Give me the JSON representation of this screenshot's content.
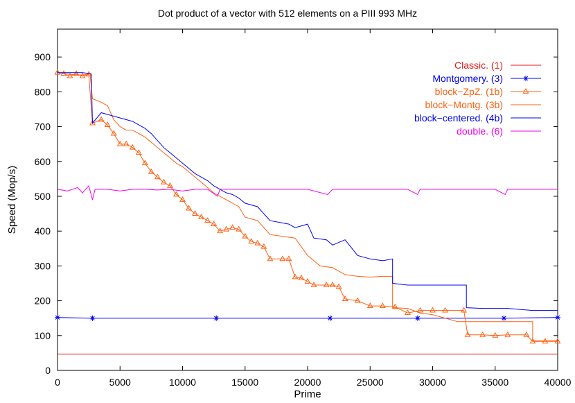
{
  "chart_data": {
    "type": "line",
    "title": "Dot product of a vector with 512 elements on a PIII 993 MHz",
    "xlabel": "Prime",
    "ylabel": "Speed (Mop/s)",
    "xlim": [
      0,
      40000
    ],
    "ylim": [
      0,
      980
    ],
    "x_ticks": [
      0,
      5000,
      10000,
      15000,
      20000,
      25000,
      30000,
      35000,
      40000
    ],
    "y_ticks": [
      0,
      100,
      200,
      300,
      400,
      500,
      600,
      700,
      800,
      900
    ],
    "x_tick_labels": [
      "0",
      "5000",
      "10000",
      "15000",
      "20000",
      "25000",
      "30000",
      "35000",
      "40000"
    ],
    "y_tick_labels": [
      "0",
      "100",
      "200",
      "300",
      "400",
      "500",
      "600",
      "700",
      "800",
      "900"
    ],
    "legend_position": "top-right",
    "series": [
      {
        "name": "Classic. (1)",
        "color": "#e41a1c",
        "marker": "none",
        "points": [
          [
            0,
            47
          ],
          [
            40000,
            47
          ]
        ]
      },
      {
        "name": "Montgomery. (3)",
        "color": "#0000ee",
        "marker": "star",
        "points": [
          [
            0,
            152
          ],
          [
            2800,
            150
          ],
          [
            12700,
            150
          ],
          [
            21800,
            150
          ],
          [
            28800,
            150
          ],
          [
            35700,
            150
          ],
          [
            40000,
            152
          ]
        ]
      },
      {
        "name": "block−ZpZ. (1b)",
        "color": "#ff6010",
        "marker": "triangle",
        "points": [
          [
            0,
            855
          ],
          [
            500,
            852
          ],
          [
            1000,
            845
          ],
          [
            1500,
            852
          ],
          [
            2000,
            845
          ],
          [
            2500,
            850
          ],
          [
            2800,
            710
          ],
          [
            3500,
            720
          ],
          [
            4000,
            705
          ],
          [
            4500,
            680
          ],
          [
            5000,
            650
          ],
          [
            5500,
            650
          ],
          [
            6000,
            640
          ],
          [
            6500,
            625
          ],
          [
            7000,
            595
          ],
          [
            7500,
            570
          ],
          [
            8000,
            555
          ],
          [
            8500,
            540
          ],
          [
            9000,
            530
          ],
          [
            9500,
            505
          ],
          [
            10000,
            490
          ],
          [
            10500,
            465
          ],
          [
            11000,
            450
          ],
          [
            11500,
            440
          ],
          [
            12000,
            430
          ],
          [
            12500,
            420
          ],
          [
            13000,
            400
          ],
          [
            13500,
            405
          ],
          [
            14000,
            410
          ],
          [
            14500,
            405
          ],
          [
            15000,
            385
          ],
          [
            15500,
            370
          ],
          [
            16000,
            365
          ],
          [
            16500,
            355
          ],
          [
            17000,
            320
          ],
          [
            18000,
            320
          ],
          [
            18500,
            320
          ],
          [
            19000,
            268
          ],
          [
            19500,
            265
          ],
          [
            20000,
            255
          ],
          [
            20500,
            245
          ],
          [
            21500,
            245
          ],
          [
            22000,
            245
          ],
          [
            22500,
            240
          ],
          [
            23000,
            205
          ],
          [
            24000,
            200
          ],
          [
            25000,
            185
          ],
          [
            26000,
            185
          ],
          [
            27000,
            182
          ],
          [
            28000,
            165
          ],
          [
            29000,
            172
          ],
          [
            30000,
            172
          ],
          [
            31000,
            172
          ],
          [
            32500,
            172
          ],
          [
            32800,
            102
          ],
          [
            34000,
            102
          ],
          [
            35000,
            100
          ],
          [
            36000,
            102
          ],
          [
            37500,
            102
          ],
          [
            38000,
            83
          ],
          [
            39000,
            83
          ],
          [
            40000,
            83
          ]
        ]
      },
      {
        "name": "block−Montg. (3b)",
        "color": "#ff6010",
        "marker": "none",
        "points": [
          [
            0,
            855
          ],
          [
            1000,
            850
          ],
          [
            2000,
            848
          ],
          [
            2600,
            852
          ],
          [
            2800,
            780
          ],
          [
            3500,
            770
          ],
          [
            4000,
            760
          ],
          [
            4500,
            720
          ],
          [
            5000,
            700
          ],
          [
            5500,
            690
          ],
          [
            6000,
            690
          ],
          [
            6500,
            680
          ],
          [
            7000,
            670
          ],
          [
            7500,
            655
          ],
          [
            8000,
            640
          ],
          [
            8500,
            625
          ],
          [
            9000,
            610
          ],
          [
            9500,
            595
          ],
          [
            10000,
            585
          ],
          [
            10500,
            570
          ],
          [
            11000,
            555
          ],
          [
            11500,
            540
          ],
          [
            12000,
            525
          ],
          [
            12500,
            510
          ],
          [
            13000,
            500
          ],
          [
            13500,
            490
          ],
          [
            14000,
            480
          ],
          [
            14500,
            470
          ],
          [
            15000,
            440
          ],
          [
            15500,
            435
          ],
          [
            16000,
            430
          ],
          [
            17000,
            390
          ],
          [
            18000,
            385
          ],
          [
            19000,
            380
          ],
          [
            20000,
            330
          ],
          [
            21000,
            300
          ],
          [
            22000,
            295
          ],
          [
            23000,
            275
          ],
          [
            24000,
            270
          ],
          [
            25000,
            268
          ],
          [
            26000,
            270
          ],
          [
            26800,
            270
          ],
          [
            26800,
            180
          ],
          [
            28000,
            178
          ],
          [
            29000,
            165
          ],
          [
            30000,
            160
          ],
          [
            31000,
            150
          ],
          [
            32000,
            140
          ],
          [
            33000,
            140
          ],
          [
            34000,
            140
          ],
          [
            35000,
            140
          ],
          [
            36000,
            140
          ],
          [
            37000,
            140
          ],
          [
            38000,
            140
          ],
          [
            38000,
            85
          ],
          [
            40000,
            85
          ]
        ]
      },
      {
        "name": "block−centered. (4b)",
        "color": "#0000ee",
        "marker": "none",
        "points": [
          [
            0,
            855
          ],
          [
            1000,
            855
          ],
          [
            2000,
            855
          ],
          [
            2700,
            852
          ],
          [
            2800,
            710
          ],
          [
            3500,
            740
          ],
          [
            4000,
            735
          ],
          [
            5000,
            725
          ],
          [
            6000,
            715
          ],
          [
            7000,
            695
          ],
          [
            7500,
            680
          ],
          [
            8000,
            660
          ],
          [
            8500,
            640
          ],
          [
            9000,
            625
          ],
          [
            9500,
            610
          ],
          [
            10000,
            595
          ],
          [
            10500,
            580
          ],
          [
            11000,
            565
          ],
          [
            11500,
            555
          ],
          [
            12000,
            545
          ],
          [
            12500,
            530
          ],
          [
            13000,
            520
          ],
          [
            13500,
            510
          ],
          [
            14000,
            505
          ],
          [
            14500,
            495
          ],
          [
            15000,
            480
          ],
          [
            16000,
            470
          ],
          [
            16500,
            450
          ],
          [
            17000,
            430
          ],
          [
            18500,
            420
          ],
          [
            19000,
            410
          ],
          [
            20000,
            420
          ],
          [
            20500,
            380
          ],
          [
            21500,
            375
          ],
          [
            22000,
            360
          ],
          [
            23000,
            375
          ],
          [
            24000,
            330
          ],
          [
            25000,
            320
          ],
          [
            26000,
            315
          ],
          [
            26800,
            320
          ],
          [
            26800,
            250
          ],
          [
            28000,
            245
          ],
          [
            30000,
            245
          ],
          [
            31500,
            245
          ],
          [
            32700,
            245
          ],
          [
            32700,
            180
          ],
          [
            34000,
            178
          ],
          [
            36000,
            178
          ],
          [
            38000,
            172
          ],
          [
            40000,
            172
          ]
        ]
      },
      {
        "name": "double. (6)",
        "color": "#ee00ee",
        "marker": "none",
        "points": [
          [
            0,
            520
          ],
          [
            800,
            515
          ],
          [
            1600,
            525
          ],
          [
            2000,
            510
          ],
          [
            2500,
            530
          ],
          [
            2800,
            490
          ],
          [
            3000,
            520
          ],
          [
            4000,
            520
          ],
          [
            5000,
            515
          ],
          [
            6000,
            520
          ],
          [
            7000,
            520
          ],
          [
            8000,
            518
          ],
          [
            9000,
            520
          ],
          [
            10000,
            515
          ],
          [
            11000,
            520
          ],
          [
            12000,
            520
          ],
          [
            12800,
            500
          ],
          [
            13000,
            520
          ],
          [
            14000,
            520
          ],
          [
            16000,
            520
          ],
          [
            18000,
            520
          ],
          [
            20000,
            520
          ],
          [
            21600,
            505
          ],
          [
            22000,
            520
          ],
          [
            24000,
            520
          ],
          [
            26000,
            520
          ],
          [
            28000,
            520
          ],
          [
            28800,
            505
          ],
          [
            29000,
            520
          ],
          [
            31000,
            520
          ],
          [
            33000,
            520
          ],
          [
            35000,
            520
          ],
          [
            35800,
            505
          ],
          [
            36000,
            520
          ],
          [
            38000,
            520
          ],
          [
            40000,
            520
          ]
        ]
      }
    ]
  }
}
